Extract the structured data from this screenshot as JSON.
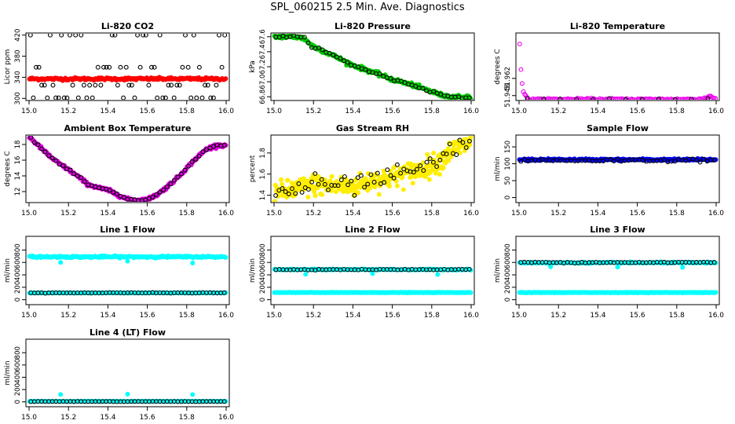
{
  "title": "SPL_060215  2.5 Min. Ave. Diagnostics",
  "chart_data": [
    {
      "type": "scatter",
      "title": "Li-820 CO2",
      "xlabel": "",
      "ylabel": "Licor ppm",
      "xlim": [
        15.0,
        16.0
      ],
      "ylim": [
        296,
        424
      ],
      "xticks": [
        "15.0",
        "15.2",
        "15.4",
        "15.6",
        "15.8",
        "16.0"
      ],
      "xtick_values": [
        15.0,
        15.2,
        15.4,
        15.6,
        15.8,
        16.0
      ],
      "yticks": [
        "300",
        "340",
        "380",
        "420"
      ],
      "ytick_values": [
        300,
        340,
        380,
        420
      ],
      "series": [
        {
          "color": "#ff0000",
          "marker": "dense",
          "mode": "flat",
          "value": 337,
          "noise": 1.2,
          "n": 220
        },
        {
          "color": "#000000",
          "marker": "circle",
          "mode": "levels",
          "levels": [
            301,
            325,
            359,
            420
          ],
          "n": 70
        }
      ]
    },
    {
      "type": "scatter",
      "title": "Li-820 Pressure",
      "xlabel": "",
      "ylabel": "kPa",
      "xlim": [
        15.0,
        16.0
      ],
      "ylim": [
        66.75,
        67.65
      ],
      "xticks": [
        "15.0",
        "15.2",
        "15.4",
        "15.6",
        "15.8",
        "16.0"
      ],
      "xtick_values": [
        15.0,
        15.2,
        15.4,
        15.6,
        15.8,
        16.0
      ],
      "yticks": [
        "66.8",
        "67.0",
        "67.2",
        "67.4",
        "67.6"
      ],
      "ytick_values": [
        66.8,
        67.0,
        67.2,
        67.4,
        67.6
      ],
      "series": [
        {
          "color": "#00cc00",
          "marker": "dense",
          "mode": "curve",
          "x": [
            15.0,
            15.1,
            15.15,
            15.2,
            15.3,
            15.4,
            15.5,
            15.6,
            15.7,
            15.8,
            15.85,
            15.9,
            15.95,
            16.0
          ],
          "y": [
            67.6,
            67.6,
            67.58,
            67.47,
            67.35,
            67.22,
            67.13,
            67.03,
            66.96,
            66.87,
            66.82,
            66.8,
            66.8,
            66.79
          ],
          "noise": 0.012,
          "n": 260
        },
        {
          "color": "#000000",
          "marker": "circle",
          "mode": "curve",
          "x": [
            15.0,
            15.1,
            15.15,
            15.2,
            15.3,
            15.4,
            15.5,
            15.6,
            15.7,
            15.8,
            15.85,
            15.9,
            15.95,
            16.0
          ],
          "y": [
            67.6,
            67.6,
            67.58,
            67.47,
            67.35,
            67.22,
            67.13,
            67.03,
            66.96,
            66.87,
            66.82,
            66.8,
            66.8,
            66.79
          ],
          "noise": 0.01,
          "n": 55
        }
      ]
    },
    {
      "type": "scatter",
      "title": "Li-820 Temperature",
      "xlabel": "",
      "ylabel": "degrees C",
      "xlim": [
        15.0,
        16.0
      ],
      "ylim": [
        51.944,
        51.999
      ],
      "xticks": [
        "15.0",
        "15.2",
        "15.4",
        "15.6",
        "15.8",
        "16.0"
      ],
      "xtick_values": [
        15.0,
        15.2,
        15.4,
        15.6,
        15.8,
        16.0
      ],
      "yticks": [
        "51.948",
        "51.962"
      ],
      "ytick_values": [
        51.948,
        51.962
      ],
      "series": [
        {
          "color": "#ee00ee",
          "marker": "circle",
          "mode": "curve",
          "x": [
            15.0,
            15.005,
            15.01,
            15.015,
            15.02,
            15.03,
            15.04,
            15.05,
            15.06,
            15.9,
            15.95,
            15.97,
            15.99
          ],
          "y": [
            51.997,
            51.986,
            51.968,
            51.958,
            51.952,
            51.948,
            51.946,
            51.945,
            51.945,
            51.945,
            51.946,
            51.948,
            51.946
          ],
          "noise": 0.0004,
          "n": 160
        },
        {
          "color": "#000000",
          "marker": "circle",
          "mode": "curve",
          "x": [
            15.0,
            15.03,
            15.05,
            15.95,
            15.97,
            15.99
          ],
          "y": [
            51.95,
            51.947,
            51.945,
            51.945,
            51.946,
            51.948
          ],
          "noise": 0.0002,
          "n": 12
        }
      ]
    },
    {
      "type": "scatter",
      "title": "Ambient Box Temperature",
      "xlabel": "",
      "ylabel": "degrees C",
      "xlim": [
        15.0,
        16.0
      ],
      "ylim": [
        10.6,
        19.2
      ],
      "xticks": [
        "15.0",
        "15.2",
        "15.4",
        "15.6",
        "15.8",
        "16.0"
      ],
      "xtick_values": [
        15.0,
        15.2,
        15.4,
        15.6,
        15.8,
        16.0
      ],
      "yticks": [
        "12",
        "14",
        "16",
        "18"
      ],
      "ytick_values": [
        12,
        14,
        16,
        18
      ],
      "series": [
        {
          "color": "#dd00dd",
          "marker": "dense",
          "mode": "curve",
          "x": [
            15.0,
            15.05,
            15.1,
            15.15,
            15.2,
            15.25,
            15.3,
            15.35,
            15.4,
            15.45,
            15.5,
            15.55,
            15.6,
            15.65,
            15.7,
            15.75,
            15.8,
            15.85,
            15.9,
            15.95,
            15.99
          ],
          "y": [
            19.0,
            17.8,
            16.6,
            15.6,
            14.8,
            13.9,
            12.9,
            12.5,
            12.2,
            11.6,
            11.0,
            10.9,
            11.0,
            11.6,
            12.6,
            13.7,
            15.0,
            16.3,
            17.4,
            17.9,
            17.9
          ],
          "noise": 0.1,
          "n": 320
        },
        {
          "color": "#000000",
          "marker": "circle",
          "mode": "curve",
          "x": [
            15.0,
            15.05,
            15.1,
            15.15,
            15.2,
            15.25,
            15.3,
            15.35,
            15.4,
            15.45,
            15.5,
            15.55,
            15.6,
            15.65,
            15.7,
            15.75,
            15.8,
            15.85,
            15.9,
            15.95,
            15.99
          ],
          "y": [
            19.0,
            17.8,
            16.6,
            15.6,
            14.8,
            13.9,
            12.9,
            12.5,
            12.2,
            11.6,
            11.0,
            10.9,
            11.0,
            11.6,
            12.6,
            13.7,
            15.0,
            16.3,
            17.4,
            17.9,
            17.9
          ],
          "noise": 0.05,
          "n": 55
        }
      ]
    },
    {
      "type": "scatter",
      "title": "Gas Stream RH",
      "xlabel": "",
      "ylabel": "percent",
      "xlim": [
        15.0,
        16.0
      ],
      "ylim": [
        1.33,
        1.97
      ],
      "xticks": [
        "15.0",
        "15.2",
        "15.4",
        "15.6",
        "15.8",
        "16.0"
      ],
      "xtick_values": [
        15.0,
        15.2,
        15.4,
        15.6,
        15.8,
        16.0
      ],
      "yticks": [
        "1.4",
        "1.6",
        "1.8"
      ],
      "ytick_values": [
        1.4,
        1.6,
        1.8
      ],
      "series": [
        {
          "color": "#ffee00",
          "marker": "dense",
          "mode": "curve",
          "x": [
            15.0,
            15.1,
            15.2,
            15.3,
            15.4,
            15.5,
            15.6,
            15.7,
            15.8,
            15.85,
            15.9,
            16.0
          ],
          "y": [
            1.42,
            1.45,
            1.5,
            1.49,
            1.48,
            1.54,
            1.57,
            1.62,
            1.68,
            1.74,
            1.82,
            1.9
          ],
          "noise": 0.05,
          "n": 380
        },
        {
          "color": "#000000",
          "marker": "circle",
          "mode": "curve",
          "x": [
            15.0,
            15.1,
            15.2,
            15.3,
            15.4,
            15.5,
            15.6,
            15.7,
            15.8,
            15.85,
            15.9,
            16.0
          ],
          "y": [
            1.42,
            1.45,
            1.5,
            1.49,
            1.48,
            1.54,
            1.57,
            1.62,
            1.68,
            1.74,
            1.82,
            1.9
          ],
          "noise": 0.045,
          "n": 60
        }
      ]
    },
    {
      "type": "scatter",
      "title": "Sample Flow",
      "xlabel": "",
      "ylabel": "ml/min",
      "xlim": [
        15.0,
        16.0
      ],
      "ylim": [
        -15,
        185
      ],
      "xticks": [
        "15.0",
        "15.2",
        "15.4",
        "15.6",
        "15.8",
        "16.0"
      ],
      "xtick_values": [
        15.0,
        15.2,
        15.4,
        15.6,
        15.8,
        16.0
      ],
      "yticks": [
        "0",
        "50",
        "100",
        "150"
      ],
      "ytick_values": [
        0,
        50,
        100,
        150
      ],
      "series": [
        {
          "color": "#0000ee",
          "marker": "dense",
          "mode": "flat",
          "value": 112,
          "noise": 1.5,
          "n": 240
        },
        {
          "color": "#000000",
          "marker": "circle",
          "mode": "flat",
          "value": 110,
          "noise": 2,
          "n": 55
        }
      ]
    },
    {
      "type": "scatter",
      "title": "Line 1 Flow",
      "xlabel": "",
      "ylabel": "ml/min",
      "xlim": [
        15.0,
        16.0
      ],
      "ylim": [
        -80,
        1020
      ],
      "xticks": [
        "15.0",
        "15.2",
        "15.4",
        "15.6",
        "15.8",
        "16.0"
      ],
      "xtick_values": [
        15.0,
        15.2,
        15.4,
        15.6,
        15.8,
        16.0
      ],
      "yticks": [
        "0",
        "200",
        "400",
        "600",
        "800"
      ],
      "ytick_values": [
        0,
        200,
        400,
        600,
        800
      ],
      "series": [
        {
          "color": "#00ffff",
          "marker": "dense",
          "mode": "flat",
          "value": 690,
          "noise": 7,
          "n": 240,
          "outliers": [
            [
              15.16,
              600
            ],
            [
              15.5,
              620
            ],
            [
              15.83,
              590
            ]
          ]
        },
        {
          "color": "#00ffff",
          "marker": "dense",
          "mode": "flat",
          "value": 110,
          "noise": 2,
          "n": 200
        },
        {
          "color": "#000000",
          "marker": "circle",
          "mode": "flat",
          "value": 110,
          "noise": 2,
          "n": 55
        }
      ]
    },
    {
      "type": "scatter",
      "title": "Line 2 Flow",
      "xlabel": "",
      "ylabel": "ml/min",
      "xlim": [
        15.0,
        16.0
      ],
      "ylim": [
        -80,
        1020
      ],
      "xticks": [
        "15.0",
        "15.2",
        "15.4",
        "15.6",
        "15.8",
        "16.0"
      ],
      "xtick_values": [
        15.0,
        15.2,
        15.4,
        15.6,
        15.8,
        16.0
      ],
      "yticks": [
        "0",
        "200",
        "400",
        "600",
        "800"
      ],
      "ytick_values": [
        0,
        200,
        400,
        600,
        800
      ],
      "series": [
        {
          "color": "#00ffff",
          "marker": "dense",
          "mode": "flat",
          "value": 485,
          "noise": 4,
          "n": 220,
          "outliers": [
            [
              15.16,
              410
            ],
            [
              15.5,
              420
            ],
            [
              15.83,
              405
            ]
          ]
        },
        {
          "color": "#00ffff",
          "marker": "dense",
          "mode": "flat",
          "value": 115,
          "noise": 2,
          "n": 260
        },
        {
          "color": "#000000",
          "marker": "circle",
          "mode": "flat",
          "value": 485,
          "noise": 3,
          "n": 55
        }
      ]
    },
    {
      "type": "scatter",
      "title": "Line 3 Flow",
      "xlabel": "",
      "ylabel": "ml/min",
      "xlim": [
        15.0,
        16.0
      ],
      "ylim": [
        -80,
        1020
      ],
      "xticks": [
        "15.0",
        "15.2",
        "15.4",
        "15.6",
        "15.8",
        "16.0"
      ],
      "xtick_values": [
        15.0,
        15.2,
        15.4,
        15.6,
        15.8,
        16.0
      ],
      "yticks": [
        "0",
        "200",
        "400",
        "600",
        "800"
      ],
      "ytick_values": [
        0,
        200,
        400,
        600,
        800
      ],
      "series": [
        {
          "color": "#00ffff",
          "marker": "dense",
          "mode": "flat",
          "value": 595,
          "noise": 5,
          "n": 220,
          "outliers": [
            [
              15.16,
              530
            ],
            [
              15.5,
              525
            ],
            [
              15.83,
              520
            ]
          ]
        },
        {
          "color": "#00ffff",
          "marker": "dense",
          "mode": "flat",
          "value": 115,
          "noise": 2,
          "n": 260
        },
        {
          "color": "#000000",
          "marker": "circle",
          "mode": "flat",
          "value": 600,
          "noise": 4,
          "n": 55
        }
      ]
    },
    {
      "type": "scatter",
      "title": "Line 4 (LT) Flow",
      "xlabel": "",
      "ylabel": "ml/min",
      "xlim": [
        15.0,
        16.0
      ],
      "ylim": [
        -80,
        1020
      ],
      "xticks": [
        "15.0",
        "15.2",
        "15.4",
        "15.6",
        "15.8",
        "16.0"
      ],
      "xtick_values": [
        15.0,
        15.2,
        15.4,
        15.6,
        15.8,
        16.0
      ],
      "yticks": [
        "0",
        "200",
        "400",
        "600",
        "800"
      ],
      "ytick_values": [
        0,
        200,
        400,
        600,
        800
      ],
      "series": [
        {
          "color": "#00ffff",
          "marker": "dense",
          "mode": "flat",
          "value": 8,
          "noise": 1.5,
          "n": 200,
          "outliers": [
            [
              15.16,
              120
            ],
            [
              15.5,
              125
            ],
            [
              15.83,
              118
            ]
          ]
        },
        {
          "color": "#000000",
          "marker": "circle",
          "mode": "flat",
          "value": 5,
          "noise": 1.5,
          "n": 55
        }
      ]
    }
  ]
}
